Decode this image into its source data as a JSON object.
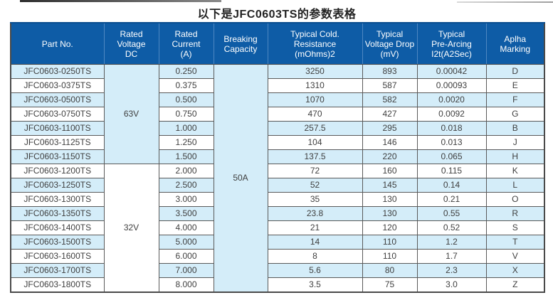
{
  "page": {
    "title": "以下是JFC0603TS的参数表格"
  },
  "colors": {
    "header_bg": "#0e5ca6",
    "header_divider": "#4e87c2",
    "row_alt_bg": "#d4edf9",
    "grid_line": "#5a5a5a",
    "body_text": "#3f3f3f",
    "header_text": "#ffffff"
  },
  "table": {
    "headers": [
      "Part No.",
      "Rated\nVoltage\nDC",
      "Rated\nCurrent\n(A)",
      "Breaking\nCapacity",
      "Typical Cold.\nResistance\n(mOhms)2",
      "Typical\nVoltage Drop\n(mV)",
      "Typical\nPre-Arcing\nI2t(A2Sec)",
      "Aplha\nMarking"
    ],
    "voltage_groups": [
      {
        "label": "63V",
        "row_span": 7
      },
      {
        "label": "32V",
        "row_span": 9
      }
    ],
    "breaking_capacity": "50A",
    "rows": [
      {
        "part": "JFC0603-0250TS",
        "current": "0.250",
        "resistance": "3250",
        "vdrop": "893",
        "i2t": "0.00042",
        "marking": "D"
      },
      {
        "part": "JFC0603-0375TS",
        "current": "0.375",
        "resistance": "1310",
        "vdrop": "587",
        "i2t": "0.00093",
        "marking": "E"
      },
      {
        "part": "JFC0603-0500TS",
        "current": "0.500",
        "resistance": "1070",
        "vdrop": "582",
        "i2t": "0.0020",
        "marking": "F"
      },
      {
        "part": "JFC0603-0750TS",
        "current": "0.750",
        "resistance": "470",
        "vdrop": "427",
        "i2t": "0.0092",
        "marking": "G"
      },
      {
        "part": "JFC0603-1100TS",
        "current": "1.000",
        "resistance": "257.5",
        "vdrop": "295",
        "i2t": "0.018",
        "marking": "B"
      },
      {
        "part": "JFC0603-1125TS",
        "current": "1.250",
        "resistance": "104",
        "vdrop": "146",
        "i2t": "0.013",
        "marking": "J"
      },
      {
        "part": "JFC0603-1150TS",
        "current": "1.500",
        "resistance": "137.5",
        "vdrop": "220",
        "i2t": "0.065",
        "marking": "H"
      },
      {
        "part": "JFC0603-1200TS",
        "current": "2.000",
        "resistance": "72",
        "vdrop": "160",
        "i2t": "0.115",
        "marking": "K"
      },
      {
        "part": "JFC0603-1250TS",
        "current": "2.500",
        "resistance": "52",
        "vdrop": "145",
        "i2t": "0.14",
        "marking": "L"
      },
      {
        "part": "JFC0603-1300TS",
        "current": "3.000",
        "resistance": "35",
        "vdrop": "130",
        "i2t": "0.21",
        "marking": "O"
      },
      {
        "part": "JFC0603-1350TS",
        "current": "3.500",
        "resistance": "23.8",
        "vdrop": "130",
        "i2t": "0.55",
        "marking": "R"
      },
      {
        "part": "JFC0603-1400TS",
        "current": "4.000",
        "resistance": "21",
        "vdrop": "120",
        "i2t": "0.52",
        "marking": "S"
      },
      {
        "part": "JFC0603-1500TS",
        "current": "5.000",
        "resistance": "14",
        "vdrop": "110",
        "i2t": "1.2",
        "marking": "T"
      },
      {
        "part": "JFC0603-1600TS",
        "current": "6.000",
        "resistance": "8",
        "vdrop": "110",
        "i2t": "1.7",
        "marking": "V"
      },
      {
        "part": "JFC0603-1700TS",
        "current": "7.000",
        "resistance": "5.6",
        "vdrop": "80",
        "i2t": "2.3",
        "marking": "X"
      },
      {
        "part": "JFC0603-1800TS",
        "current": "8.000",
        "resistance": "3.5",
        "vdrop": "75",
        "i2t": "3.0",
        "marking": "Z"
      }
    ]
  }
}
